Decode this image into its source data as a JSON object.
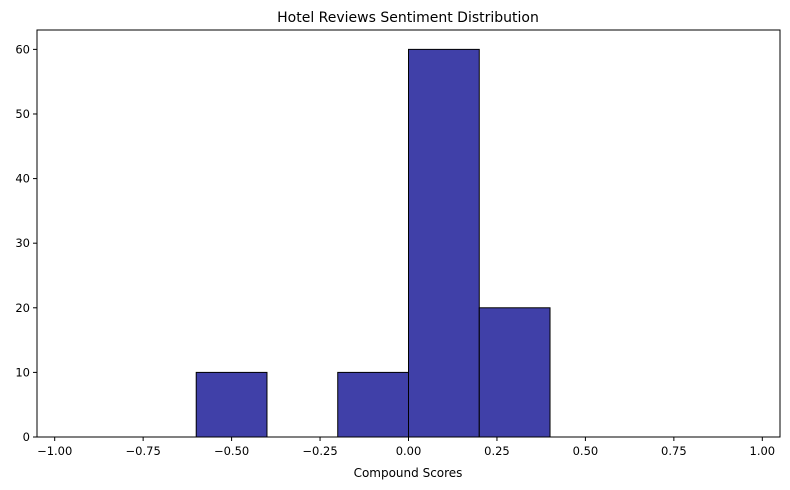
{
  "chart_data": {
    "type": "bar",
    "title": "Hotel Reviews Sentiment Distribution",
    "xlabel": "Compound Scores",
    "ylabel": "",
    "xlim": [
      -1.05,
      1.05
    ],
    "ylim": [
      0,
      63
    ],
    "bins": [
      {
        "x0": -0.6,
        "x1": -0.4,
        "count": 10
      },
      {
        "x0": -0.2,
        "x1": 0.0,
        "count": 10
      },
      {
        "x0": 0.0,
        "x1": 0.2,
        "count": 60
      },
      {
        "x0": 0.2,
        "x1": 0.4,
        "count": 20
      }
    ],
    "x_ticks": [
      -1.0,
      -0.75,
      -0.5,
      -0.25,
      0.0,
      0.25,
      0.5,
      0.75,
      1.0
    ],
    "x_tick_labels": [
      "−1.00",
      "−0.75",
      "−0.50",
      "−0.25",
      "0.00",
      "0.25",
      "0.50",
      "0.75",
      "1.00"
    ],
    "y_ticks": [
      0,
      10,
      20,
      30,
      40,
      50,
      60
    ],
    "y_tick_labels": [
      "0",
      "10",
      "20",
      "30",
      "40",
      "50",
      "60"
    ],
    "bar_color": "#4040a8",
    "edge_color": "#000000",
    "grid": false,
    "legend": "none"
  }
}
